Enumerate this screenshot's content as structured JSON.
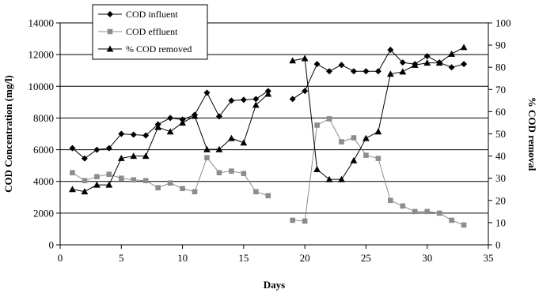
{
  "chart_data": {
    "type": "line",
    "xlabel": "Days",
    "ylabel": "COD Concentration (mg/l)",
    "y2label": "% COD removal",
    "xlim": [
      0,
      35
    ],
    "ylim": [
      0,
      14000
    ],
    "y2lim": [
      0,
      100
    ],
    "xticks": [
      "0",
      "5",
      "10",
      "15",
      "20",
      "25",
      "30",
      "35"
    ],
    "yticks": [
      "0",
      "2000",
      "4000",
      "6000",
      "8000",
      "10000",
      "12000",
      "14000"
    ],
    "y2ticks": [
      "0",
      "10",
      "20",
      "30",
      "40",
      "50",
      "60",
      "70",
      "80",
      "90",
      "100"
    ],
    "grid": "horizontal",
    "legend": "top-left, inside plot",
    "series": [
      {
        "name": "COD influent",
        "axis": "left",
        "marker": "diamond",
        "color": "#000000",
        "segments": [
          {
            "x": [
              1,
              2,
              3,
              4,
              5,
              6,
              7,
              8,
              9,
              10,
              11,
              12,
              13,
              14,
              15,
              16,
              17
            ],
            "y": [
              6100,
              5450,
              6000,
              6100,
              7000,
              6950,
              6900,
              7600,
              8000,
              7900,
              8200,
              9600,
              8100,
              9100,
              9150,
              9200,
              9700
            ]
          },
          {
            "x": [
              19,
              20,
              21,
              22,
              23,
              24,
              25,
              26,
              27,
              28,
              29,
              30,
              31,
              32,
              33
            ],
            "y": [
              9200,
              9700,
              11400,
              10950,
              11350,
              10950,
              10950,
              10950,
              12300,
              11500,
              11400,
              11900,
              11500,
              11200,
              11400
            ]
          }
        ]
      },
      {
        "name": "COD effluent",
        "axis": "left",
        "marker": "square",
        "color": "#8c8c8c",
        "segments": [
          {
            "x": [
              1,
              2,
              3,
              4,
              5,
              6,
              7,
              8,
              9,
              10,
              11,
              12,
              13,
              14,
              15,
              16,
              17
            ],
            "y": [
              4550,
              4050,
              4300,
              4450,
              4200,
              4100,
              4050,
              3600,
              3900,
              3550,
              3350,
              5500,
              4550,
              4650,
              4500,
              3350,
              3100
            ]
          },
          {
            "x": [
              19,
              20,
              21,
              22,
              23,
              24,
              25,
              26,
              27,
              28,
              29,
              30,
              31,
              32,
              33
            ],
            "y": [
              1550,
              1500,
              7550,
              7950,
              6500,
              6750,
              5650,
              5450,
              2800,
              2450,
              2100,
              2100,
              2000,
              1550,
              1250
            ]
          }
        ]
      },
      {
        "name": "% COD removed",
        "axis": "right",
        "marker": "triangle",
        "color": "#000000",
        "segments": [
          {
            "x": [
              1,
              2,
              3,
              4,
              5,
              6,
              7,
              8,
              9,
              10,
              11,
              12,
              13,
              14,
              15,
              16,
              17
            ],
            "y": [
              25,
              24,
              27,
              27,
              39,
              40,
              40,
              53,
              51,
              55,
              58,
              43,
              43,
              48,
              46,
              63,
              68
            ]
          },
          {
            "x": [
              19,
              20,
              21,
              22,
              23,
              24,
              25,
              26,
              27,
              28,
              29,
              30,
              31,
              32,
              33
            ],
            "y": [
              83,
              84,
              34,
              29.5,
              29.5,
              38,
              48,
              51,
              77,
              78,
              81,
              82,
              82,
              86,
              89
            ]
          }
        ]
      }
    ]
  }
}
